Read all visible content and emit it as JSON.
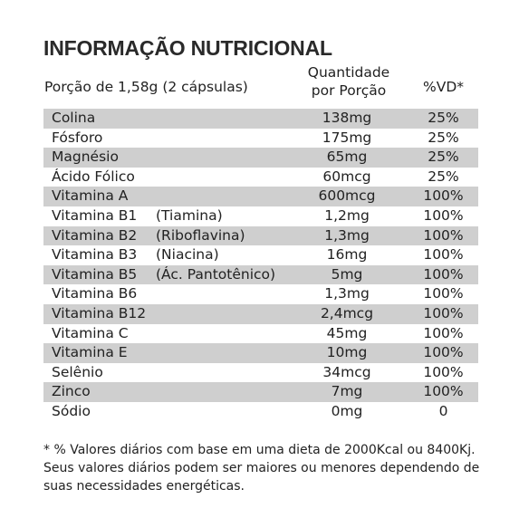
{
  "title": "INFORMAÇÃO NUTRICIONAL",
  "portion": "Porção de 1,58g (2 cápsulas)",
  "header_qty_line1": "Quantidade",
  "header_qty_line2": "por Porção",
  "header_vd": "%VD*",
  "rows": [
    {
      "name": "Colina",
      "alt": "",
      "qty": "138mg",
      "vd": "25%",
      "shaded": true
    },
    {
      "name": "Fósforo",
      "alt": "",
      "qty": "175mg",
      "vd": "25%",
      "shaded": false
    },
    {
      "name": "Magnésio",
      "alt": "",
      "qty": "65mg",
      "vd": "25%",
      "shaded": true
    },
    {
      "name": "Ácido Fólico",
      "alt": "",
      "qty": "60mcg",
      "vd": "25%",
      "shaded": false
    },
    {
      "name": "Vitamina A",
      "alt": "",
      "qty": "600mcg",
      "vd": "100%",
      "shaded": true
    },
    {
      "name": "Vitamina B1",
      "alt": "(Tiamina)",
      "qty": "1,2mg",
      "vd": "100%",
      "shaded": false
    },
    {
      "name": "Vitamina B2",
      "alt": "(Riboflavina)",
      "qty": "1,3mg",
      "vd": "100%",
      "shaded": true
    },
    {
      "name": "Vitamina B3",
      "alt": "(Niacina)",
      "qty": "16mg",
      "vd": "100%",
      "shaded": false
    },
    {
      "name": "Vitamina B5",
      "alt": "(Ác. Pantotênico)",
      "qty": "5mg",
      "vd": "100%",
      "shaded": true
    },
    {
      "name": "Vitamina B6",
      "alt": "",
      "qty": "1,3mg",
      "vd": "100%",
      "shaded": false
    },
    {
      "name": "Vitamina B12",
      "alt": "",
      "qty": "2,4mcg",
      "vd": "100%",
      "shaded": true
    },
    {
      "name": "Vitamina C",
      "alt": "",
      "qty": "45mg",
      "vd": "100%",
      "shaded": false
    },
    {
      "name": "Vitamina E",
      "alt": "",
      "qty": "10mg",
      "vd": "100%",
      "shaded": true
    },
    {
      "name": "Selênio",
      "alt": "",
      "qty": "34mcg",
      "vd": "100%",
      "shaded": false
    },
    {
      "name": "Zinco",
      "alt": "",
      "qty": "7mg",
      "vd": "100%",
      "shaded": true
    },
    {
      "name": "Sódio",
      "alt": "",
      "qty": "0mg",
      "vd": "0",
      "shaded": false
    }
  ],
  "footnote": "* % Valores diários com base em uma dieta de 2000Kcal ou 8400Kj. Seus valores diários podem ser maiores ou menores dependendo de suas necessidades energéticas.",
  "colors": {
    "row_shade": "#cfcfcf",
    "text": "#222222"
  }
}
